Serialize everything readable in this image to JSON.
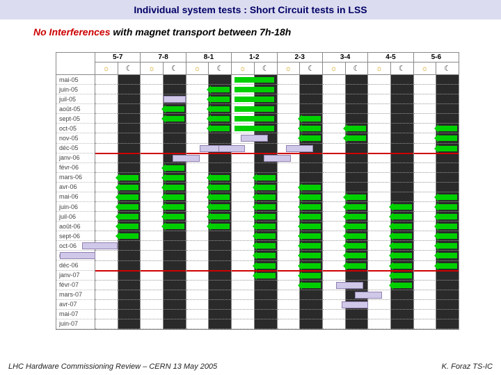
{
  "title": "Individual system tests : Short Circuit tests in LSS",
  "subtitle_red": "No Interferences",
  "subtitle_rest": " with magnet transport between 7h-18h",
  "footer_left": "LHC Hardware Commissioning Review – CERN 13 May 2005",
  "footer_right": "K. Foraz TS-IC",
  "colors": {
    "title_bg": "#dcdcf0",
    "title_fg": "#000066",
    "red": "#cc0000",
    "night_bg": "#2a2a2a",
    "green": "#00d000",
    "purple": "#d0c8e8",
    "divider_red": "#d00000"
  },
  "sun_glyph": "☼",
  "moon_glyph": "☾",
  "sectors": [
    "5-7",
    "7-8",
    "8-1",
    "1-2",
    "2-3",
    "3-4",
    "4-5",
    "5-6"
  ],
  "rows": [
    "mai-05",
    "juin-05",
    "juil-05",
    "août-05",
    "sept-05",
    "oct-05",
    "nov-05",
    "déc-05",
    "janv-06",
    "févr-06",
    "mars-06",
    "avr-06",
    "mai-06",
    "juin-06",
    "juil-06",
    "août-06",
    "sept-06",
    "oct-06",
    "nov-06",
    "déc-06",
    "janv-07",
    "févr-07",
    "mars-07",
    "avr-07",
    "mai-07",
    "juin-07"
  ],
  "dec_rows": [
    7,
    19
  ],
  "row_h": 14.08,
  "green_bars": [
    {
      "sector": 0,
      "row": 10,
      "side": "night",
      "w": 1,
      "arrow": "l"
    },
    {
      "sector": 0,
      "row": 11,
      "side": "night",
      "w": 1,
      "arrow": "l"
    },
    {
      "sector": 0,
      "row": 12,
      "side": "night",
      "w": 1,
      "arrow": "l"
    },
    {
      "sector": 0,
      "row": 13,
      "side": "night",
      "w": 1,
      "arrow": "l"
    },
    {
      "sector": 0,
      "row": 14,
      "side": "night",
      "w": 1,
      "arrow": "l"
    },
    {
      "sector": 0,
      "row": 15,
      "side": "night",
      "w": 1,
      "arrow": "l"
    },
    {
      "sector": 0,
      "row": 16,
      "side": "night",
      "w": 1,
      "arrow": "l"
    },
    {
      "sector": 1,
      "row": 3,
      "side": "night",
      "w": 1,
      "arrow": "l"
    },
    {
      "sector": 1,
      "row": 4,
      "side": "night",
      "w": 1,
      "arrow": "l"
    },
    {
      "sector": 1,
      "row": 9,
      "side": "night",
      "w": 1,
      "arrow": "l"
    },
    {
      "sector": 1,
      "row": 10,
      "side": "night",
      "w": 1,
      "arrow": "l"
    },
    {
      "sector": 1,
      "row": 11,
      "side": "night",
      "w": 1,
      "arrow": "l"
    },
    {
      "sector": 1,
      "row": 12,
      "side": "night",
      "w": 1,
      "arrow": "l"
    },
    {
      "sector": 1,
      "row": 13,
      "side": "night",
      "w": 1,
      "arrow": "l"
    },
    {
      "sector": 1,
      "row": 14,
      "side": "night",
      "w": 1,
      "arrow": "l"
    },
    {
      "sector": 1,
      "row": 15,
      "side": "night",
      "w": 1,
      "arrow": "l"
    },
    {
      "sector": 2,
      "row": 1,
      "side": "night",
      "w": 1,
      "arrow": "l"
    },
    {
      "sector": 2,
      "row": 2,
      "side": "night",
      "w": 1,
      "arrow": "l"
    },
    {
      "sector": 2,
      "row": 3,
      "side": "night",
      "w": 1,
      "arrow": "l"
    },
    {
      "sector": 2,
      "row": 4,
      "side": "night",
      "w": 1,
      "arrow": "l"
    },
    {
      "sector": 2,
      "row": 5,
      "side": "night",
      "w": 1,
      "arrow": "l"
    },
    {
      "sector": 2,
      "row": 10,
      "side": "night",
      "w": 1,
      "arrow": "l"
    },
    {
      "sector": 2,
      "row": 11,
      "side": "night",
      "w": 1,
      "arrow": "l"
    },
    {
      "sector": 2,
      "row": 12,
      "side": "night",
      "w": 1,
      "arrow": "l"
    },
    {
      "sector": 2,
      "row": 13,
      "side": "night",
      "w": 1,
      "arrow": "l"
    },
    {
      "sector": 2,
      "row": 14,
      "side": "night",
      "w": 1,
      "arrow": "l"
    },
    {
      "sector": 2,
      "row": 15,
      "side": "night",
      "w": 1,
      "arrow": "l"
    },
    {
      "sector": 3,
      "row": 0,
      "side": "both",
      "w": 1
    },
    {
      "sector": 3,
      "row": 1,
      "side": "both",
      "w": 1
    },
    {
      "sector": 3,
      "row": 2,
      "side": "both",
      "w": 1
    },
    {
      "sector": 3,
      "row": 3,
      "side": "both",
      "w": 1
    },
    {
      "sector": 3,
      "row": 4,
      "side": "both",
      "w": 1
    },
    {
      "sector": 3,
      "row": 5,
      "side": "both",
      "w": 1
    },
    {
      "sector": 3,
      "row": 10,
      "side": "night",
      "w": 1,
      "arrow": "l"
    },
    {
      "sector": 3,
      "row": 11,
      "side": "night",
      "w": 1,
      "arrow": "l"
    },
    {
      "sector": 3,
      "row": 12,
      "side": "night",
      "w": 1,
      "arrow": "l"
    },
    {
      "sector": 3,
      "row": 13,
      "side": "night",
      "w": 1,
      "arrow": "l"
    },
    {
      "sector": 3,
      "row": 14,
      "side": "night",
      "w": 1,
      "arrow": "l"
    },
    {
      "sector": 3,
      "row": 15,
      "side": "night",
      "w": 1,
      "arrow": "l"
    },
    {
      "sector": 3,
      "row": 16,
      "side": "night",
      "w": 1,
      "arrow": "l"
    },
    {
      "sector": 3,
      "row": 17,
      "side": "night",
      "w": 1,
      "arrow": "l"
    },
    {
      "sector": 3,
      "row": 18,
      "side": "night",
      "w": 1,
      "arrow": "l"
    },
    {
      "sector": 3,
      "row": 19,
      "side": "night",
      "w": 1,
      "arrow": "l"
    },
    {
      "sector": 3,
      "row": 20,
      "side": "night",
      "w": 1,
      "arrow": "l"
    },
    {
      "sector": 4,
      "row": 4,
      "side": "night",
      "w": 1,
      "arrow": "l"
    },
    {
      "sector": 4,
      "row": 5,
      "side": "night",
      "w": 1,
      "arrow": "l"
    },
    {
      "sector": 4,
      "row": 6,
      "side": "night",
      "w": 1,
      "arrow": "l"
    },
    {
      "sector": 4,
      "row": 11,
      "side": "night",
      "w": 1,
      "arrow": "l"
    },
    {
      "sector": 4,
      "row": 12,
      "side": "night",
      "w": 1,
      "arrow": "l"
    },
    {
      "sector": 4,
      "row": 13,
      "side": "night",
      "w": 1,
      "arrow": "l"
    },
    {
      "sector": 4,
      "row": 14,
      "side": "night",
      "w": 1,
      "arrow": "l"
    },
    {
      "sector": 4,
      "row": 15,
      "side": "night",
      "w": 1,
      "arrow": "l"
    },
    {
      "sector": 4,
      "row": 16,
      "side": "night",
      "w": 1,
      "arrow": "l"
    },
    {
      "sector": 4,
      "row": 17,
      "side": "night",
      "w": 1,
      "arrow": "l"
    },
    {
      "sector": 4,
      "row": 18,
      "side": "night",
      "w": 1,
      "arrow": "l"
    },
    {
      "sector": 4,
      "row": 19,
      "side": "night",
      "w": 1,
      "arrow": "l"
    },
    {
      "sector": 4,
      "row": 20,
      "side": "night",
      "w": 1,
      "arrow": "l"
    },
    {
      "sector": 4,
      "row": 21,
      "side": "night",
      "w": 1,
      "arrow": "l"
    },
    {
      "sector": 5,
      "row": 5,
      "side": "night",
      "w": 1,
      "arrow": "l"
    },
    {
      "sector": 5,
      "row": 6,
      "side": "night",
      "w": 1,
      "arrow": "l"
    },
    {
      "sector": 5,
      "row": 12,
      "side": "night",
      "w": 1,
      "arrow": "l"
    },
    {
      "sector": 5,
      "row": 13,
      "side": "night",
      "w": 1,
      "arrow": "l"
    },
    {
      "sector": 5,
      "row": 14,
      "side": "night",
      "w": 1,
      "arrow": "l"
    },
    {
      "sector": 5,
      "row": 15,
      "side": "night",
      "w": 1,
      "arrow": "l"
    },
    {
      "sector": 5,
      "row": 16,
      "side": "night",
      "w": 1,
      "arrow": "l"
    },
    {
      "sector": 5,
      "row": 17,
      "side": "night",
      "w": 1,
      "arrow": "l"
    },
    {
      "sector": 5,
      "row": 18,
      "side": "night",
      "w": 1,
      "arrow": "l"
    },
    {
      "sector": 5,
      "row": 19,
      "side": "night",
      "w": 1,
      "arrow": "l"
    },
    {
      "sector": 6,
      "row": 13,
      "side": "night",
      "w": 1,
      "arrow": "l"
    },
    {
      "sector": 6,
      "row": 14,
      "side": "night",
      "w": 1,
      "arrow": "l"
    },
    {
      "sector": 6,
      "row": 15,
      "side": "night",
      "w": 1,
      "arrow": "l"
    },
    {
      "sector": 6,
      "row": 16,
      "side": "night",
      "w": 1,
      "arrow": "l"
    },
    {
      "sector": 6,
      "row": 17,
      "side": "night",
      "w": 1,
      "arrow": "l"
    },
    {
      "sector": 6,
      "row": 18,
      "side": "night",
      "w": 1,
      "arrow": "l"
    },
    {
      "sector": 6,
      "row": 19,
      "side": "night",
      "w": 1,
      "arrow": "l"
    },
    {
      "sector": 6,
      "row": 20,
      "side": "night",
      "w": 1,
      "arrow": "l"
    },
    {
      "sector": 6,
      "row": 21,
      "side": "night",
      "w": 1,
      "arrow": "l"
    },
    {
      "sector": 7,
      "row": 5,
      "side": "night",
      "w": 1,
      "arrow": "l"
    },
    {
      "sector": 7,
      "row": 6,
      "side": "night",
      "w": 1,
      "arrow": "l"
    },
    {
      "sector": 7,
      "row": 7,
      "side": "night",
      "w": 1,
      "arrow": "l"
    },
    {
      "sector": 7,
      "row": 12,
      "side": "night",
      "w": 1,
      "arrow": "l"
    },
    {
      "sector": 7,
      "row": 13,
      "side": "night",
      "w": 1,
      "arrow": "l"
    },
    {
      "sector": 7,
      "row": 14,
      "side": "night",
      "w": 1,
      "arrow": "l"
    },
    {
      "sector": 7,
      "row": 15,
      "side": "night",
      "w": 1,
      "arrow": "l"
    },
    {
      "sector": 7,
      "row": 16,
      "side": "night",
      "w": 1,
      "arrow": "l"
    },
    {
      "sector": 7,
      "row": 17,
      "side": "night",
      "w": 1,
      "arrow": "l"
    },
    {
      "sector": 7,
      "row": 18,
      "side": "night",
      "w": 1,
      "arrow": "l"
    },
    {
      "sector": 7,
      "row": 19,
      "side": "night",
      "w": 1,
      "arrow": "l"
    }
  ],
  "purple_bars": [
    {
      "sector": 0,
      "row": 17,
      "off": -0.3,
      "len": 0.8
    },
    {
      "sector": 0,
      "row": 18,
      "off": -0.8,
      "len": 0.8
    },
    {
      "sector": 1,
      "row": 2,
      "off": 0.5,
      "len": 0.5
    },
    {
      "sector": 2,
      "row": 7,
      "off": 0.3,
      "len": 0.6
    },
    {
      "sector": 2,
      "row": 8,
      "off": -0.3,
      "len": 0.6
    },
    {
      "sector": 3,
      "row": 6,
      "off": 0.2,
      "len": 0.6
    },
    {
      "sector": 3,
      "row": 7,
      "off": -0.3,
      "len": 0.6
    },
    {
      "sector": 4,
      "row": 7,
      "off": 0.2,
      "len": 0.6
    },
    {
      "sector": 4,
      "row": 8,
      "off": -0.3,
      "len": 0.6
    },
    {
      "sector": 5,
      "row": 21,
      "off": 0.3,
      "len": 0.6
    },
    {
      "sector": 6,
      "row": 22,
      "off": -0.3,
      "len": 0.6
    },
    {
      "sector": 6,
      "row": 23,
      "off": -0.6,
      "len": 0.6
    }
  ]
}
